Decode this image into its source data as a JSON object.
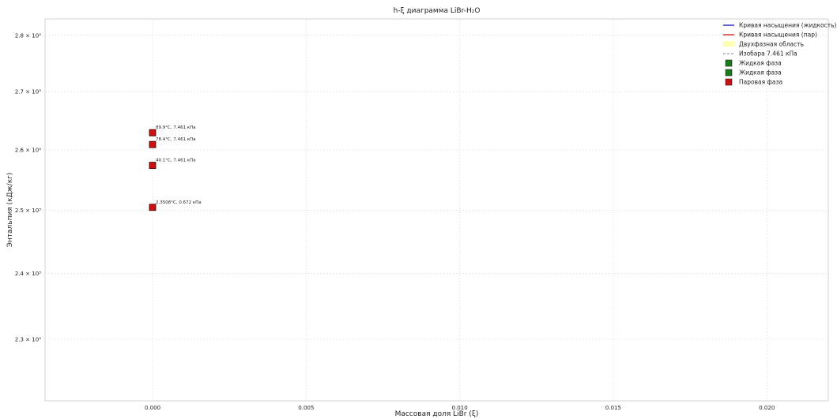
{
  "chart_data": {
    "type": "scatter",
    "title": "h-ξ диаграмма LiBr-H₂O",
    "xlabel": "Массовая доля LiBr (ξ)",
    "ylabel": "Энтальпия (кДж/кг)",
    "xlim": [
      -0.0035,
      0.022
    ],
    "ylim": [
      2210,
      2830
    ],
    "yscale": "log",
    "grid": true,
    "legend_position": "top-right",
    "x_ticks": [
      {
        "value": 0.0,
        "label": "0.000"
      },
      {
        "value": 0.005,
        "label": "0.005"
      },
      {
        "value": 0.01,
        "label": "0.010"
      },
      {
        "value": 0.015,
        "label": "0.015"
      },
      {
        "value": 0.02,
        "label": "0.020"
      }
    ],
    "y_ticks": [
      {
        "value": 2300,
        "label": "2.3 × 10³"
      },
      {
        "value": 2400,
        "label": "2.4 × 10³"
      },
      {
        "value": 2500,
        "label": "2.5 × 10³"
      },
      {
        "value": 2600,
        "label": "2.6 × 10³"
      },
      {
        "value": 2700,
        "label": "2.7 × 10³"
      },
      {
        "value": 2800,
        "label": "2.8 × 10³"
      }
    ],
    "legend": [
      {
        "label": "Кривая насыщения (жидкость)",
        "kind": "line",
        "color": "#1f1fb4"
      },
      {
        "label": "Кривая насыщения (пар)",
        "kind": "line",
        "color": "#d62728"
      },
      {
        "label": "Двухфазная область",
        "kind": "patch",
        "color": "#ffffb3"
      },
      {
        "label": "Изобара 7.461 кПа",
        "kind": "dashed",
        "color": "#7f7f9f"
      },
      {
        "label": "Жидкая фаза",
        "kind": "square",
        "color": "#1a7a1a"
      },
      {
        "label": "Жидкая фаза",
        "kind": "square",
        "color": "#1a7a1a"
      },
      {
        "label": "Паровая фаза",
        "kind": "square",
        "color": "#cc1111"
      }
    ],
    "points": [
      {
        "x": 0.0,
        "y": 2629,
        "label": "89.9°C, 7.461 кПа",
        "phase": "Паровая фаза"
      },
      {
        "x": 0.0,
        "y": 2609,
        "label": "78.4°C, 7.461 кПа",
        "phase": "Паровая фаза"
      },
      {
        "x": 0.0,
        "y": 2574,
        "label": "40.1°C, 7.461 кПа",
        "phase": "Паровая фаза"
      },
      {
        "x": 0.0,
        "y": 2505,
        "label": "2.3508°C, 0.672 кПа",
        "phase": "Паровая фаза"
      }
    ],
    "point_color": "#cc1111"
  }
}
